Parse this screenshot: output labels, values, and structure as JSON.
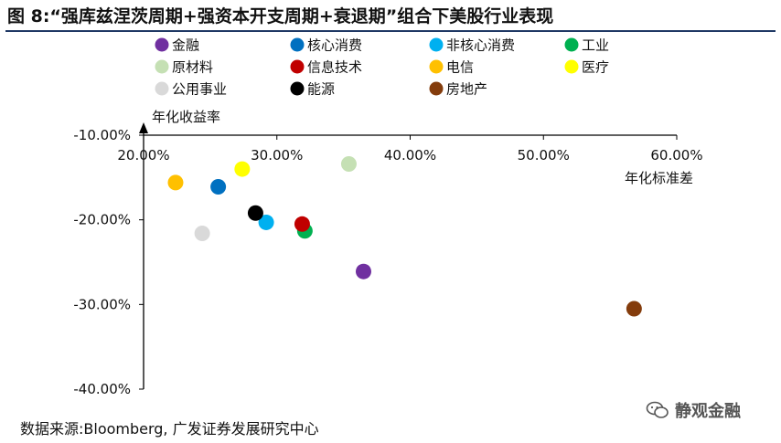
{
  "title": "图 8:“强库兹涅茨周期+强资本开支周期+衰退期”组合下美股行业表现",
  "source": "数据来源:Bloomberg, 广发证券发展研究中心",
  "watermark": "静观金融",
  "chart_data": {
    "type": "scatter",
    "title": "",
    "xlabel": "年化标准差",
    "ylabel": "年化收益率",
    "xlim": [
      0.2,
      0.6
    ],
    "ylim": [
      -0.4,
      -0.1
    ],
    "xticks": [
      "20.00%",
      "30.00%",
      "40.00%",
      "50.00%",
      "60.00%"
    ],
    "yticks": [
      "-10.00%",
      "-20.00%",
      "-30.00%",
      "-40.00%"
    ],
    "x_tick_values": [
      0.2,
      0.3,
      0.4,
      0.5,
      0.6
    ],
    "y_tick_values": [
      -0.1,
      -0.2,
      -0.3,
      -0.4
    ],
    "grid": false,
    "legend_position": "top",
    "series": [
      {
        "name": "金融",
        "color": "#7030a0",
        "x": 0.365,
        "y": -0.261
      },
      {
        "name": "核心消费",
        "color": "#0070c0",
        "x": 0.256,
        "y": -0.161
      },
      {
        "name": "非核心消费",
        "color": "#00b0f0",
        "x": 0.292,
        "y": -0.203
      },
      {
        "name": "工业",
        "color": "#00b050",
        "x": 0.321,
        "y": -0.213
      },
      {
        "name": "原材料",
        "color": "#c5e0b4",
        "x": 0.354,
        "y": -0.134
      },
      {
        "name": "信息技术",
        "color": "#c00000",
        "x": 0.319,
        "y": -0.205
      },
      {
        "name": "电信",
        "color": "#ffc000",
        "x": 0.224,
        "y": -0.156
      },
      {
        "name": "医疗",
        "color": "#ffff00",
        "x": 0.274,
        "y": -0.14
      },
      {
        "name": "公用事业",
        "color": "#d9d9d9",
        "x": 0.244,
        "y": -0.216
      },
      {
        "name": "能源",
        "color": "#000000",
        "x": 0.284,
        "y": -0.192
      },
      {
        "name": "房地产",
        "color": "#843c0c",
        "x": 0.568,
        "y": -0.305
      }
    ]
  }
}
